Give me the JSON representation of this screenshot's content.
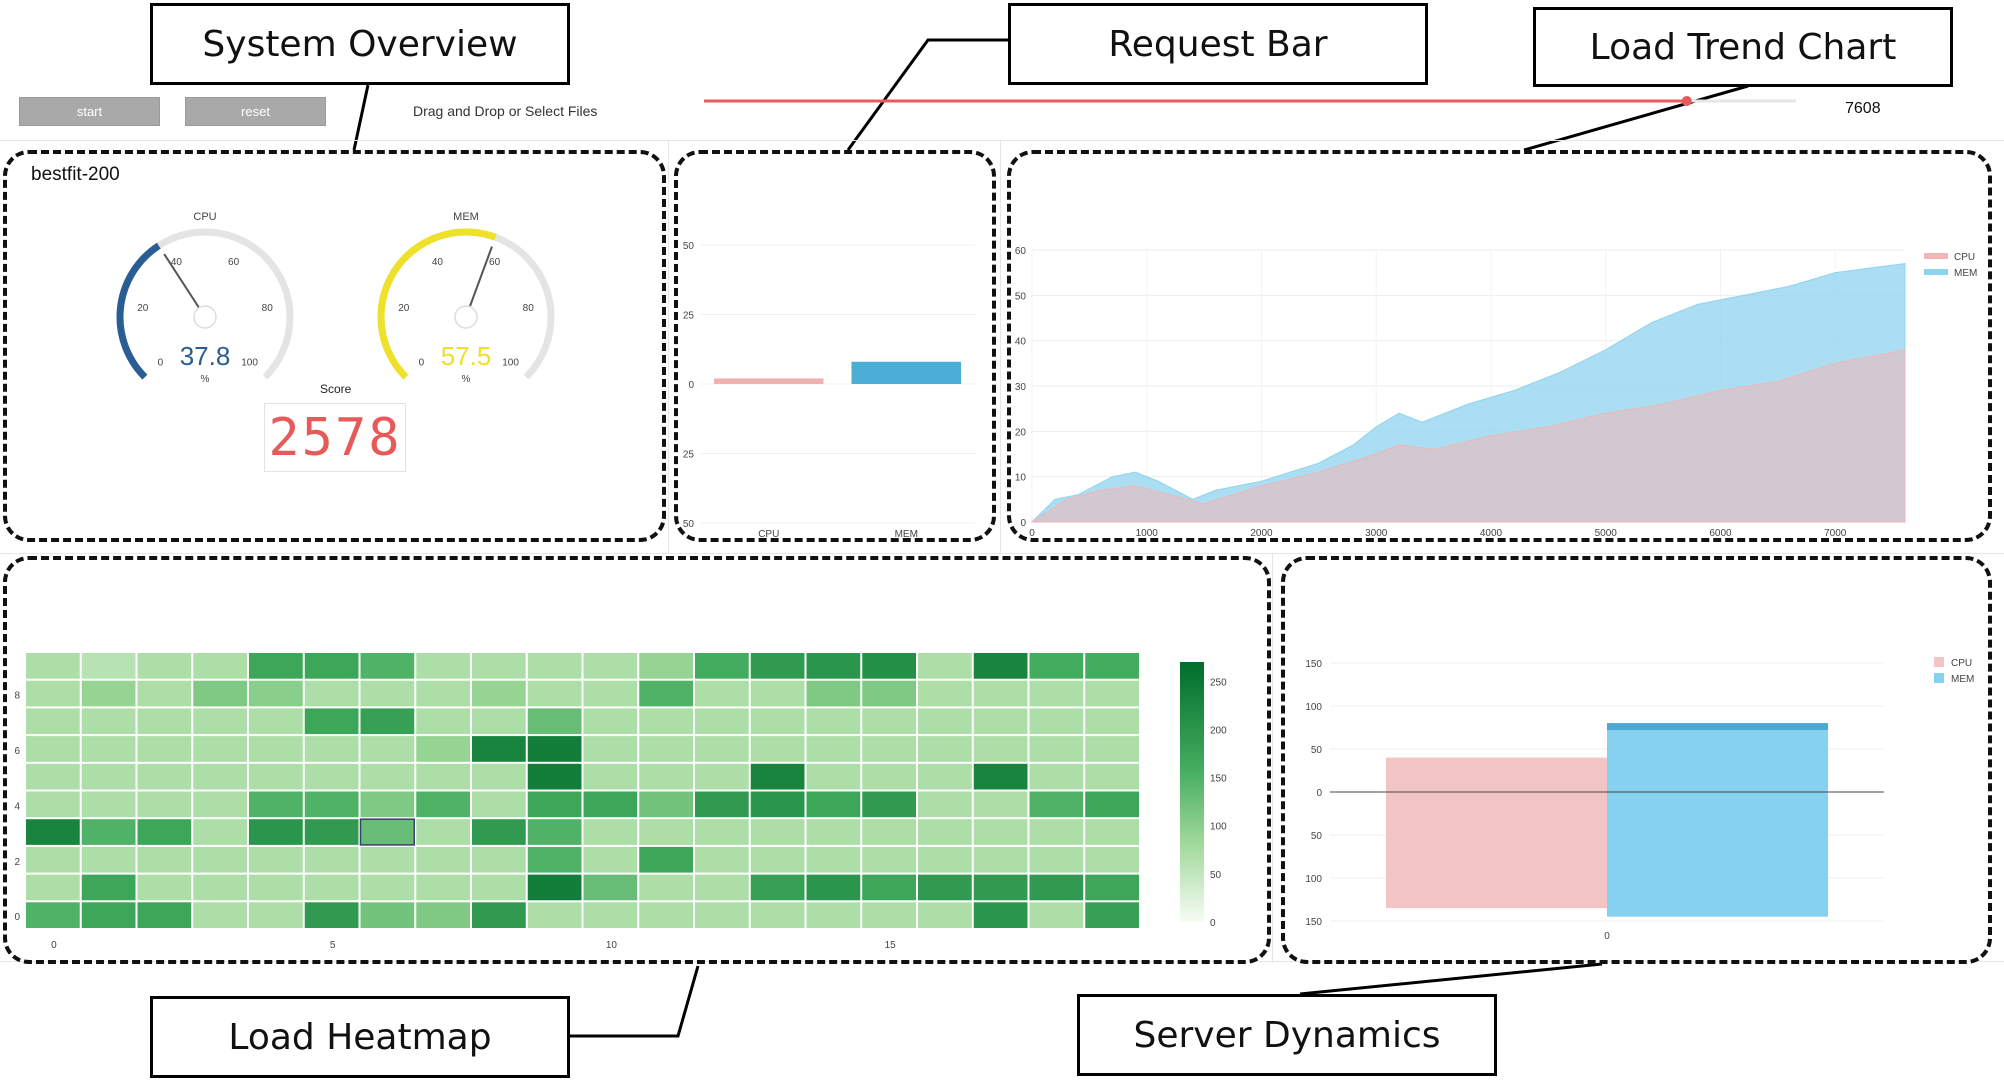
{
  "callouts": {
    "system_overview": "System Overview",
    "request_bar": "Request Bar",
    "load_trend_chart": "Load Trend Chart",
    "load_heatmap": "Load Heatmap",
    "server_dynamics": "Server Dynamics"
  },
  "toolbar": {
    "start_label": "start",
    "reset_label": "reset",
    "file_label": "Drag and Drop or Select Files",
    "slider_value_label": "7608",
    "slider_fraction": 0.9,
    "slider_color": "#e9595b"
  },
  "overview": {
    "title": "bestfit-200",
    "cpu_label": "CPU",
    "mem_label": "MEM",
    "cpu_value": "37.8",
    "mem_value": "57.5",
    "cpu_numeric": 37.8,
    "mem_numeric": 57.5,
    "cpu_color": "#2a5d94",
    "mem_color": "#efe02a",
    "gauge_ticks": [
      "0",
      "20",
      "40",
      "60",
      "80",
      "100"
    ],
    "gauge_unit": "%",
    "score_label": "Score",
    "score_value": "2578",
    "score_color": "#e85a5a"
  },
  "request_bar": {
    "chart_data": {
      "type": "bar",
      "categories": [
        "CPU",
        "MEM"
      ],
      "values": [
        2,
        8
      ],
      "ylim": [
        -50,
        50
      ],
      "yticks": [
        "50",
        "25",
        "0",
        "25",
        "50"
      ],
      "colors": [
        "#f0b2b0",
        "#4aaed6"
      ]
    }
  },
  "trend": {
    "chart_data": {
      "type": "area",
      "xlim": [
        0,
        7608
      ],
      "ylim": [
        0,
        60
      ],
      "xticks": [
        "0",
        "1000",
        "2000",
        "3000",
        "4000",
        "5000",
        "6000",
        "7000"
      ],
      "yticks": [
        "0",
        "10",
        "20",
        "30",
        "40",
        "50",
        "60"
      ],
      "legend": [
        "CPU",
        "MEM"
      ],
      "legend_position": "top-right",
      "series": [
        {
          "name": "CPU",
          "color": "#f1b6b4",
          "x": [
            0,
            300,
            600,
            900,
            1200,
            1500,
            2000,
            2500,
            3000,
            3200,
            3500,
            4000,
            4500,
            5000,
            5500,
            6000,
            6500,
            7000,
            7608
          ],
          "y": [
            0,
            5,
            7,
            8,
            6,
            4,
            8,
            11,
            15,
            17,
            16,
            19,
            21,
            24,
            26,
            29,
            31,
            35,
            38
          ]
        },
        {
          "name": "MEM",
          "color": "#8fd3ef",
          "x": [
            0,
            200,
            400,
            700,
            900,
            1100,
            1400,
            1600,
            2000,
            2500,
            2800,
            3000,
            3200,
            3400,
            3800,
            4200,
            4600,
            5000,
            5400,
            5800,
            6200,
            6600,
            7000,
            7300,
            7608
          ],
          "y": [
            0,
            5,
            6,
            10,
            11,
            9,
            5,
            7,
            9,
            13,
            17,
            21,
            24,
            22,
            26,
            29,
            33,
            38,
            44,
            48,
            50,
            52,
            55,
            56,
            57
          ]
        }
      ]
    }
  },
  "heatmap": {
    "chart_data": {
      "type": "heatmap",
      "x_ticks": [
        "0",
        "5",
        "10",
        "15"
      ],
      "y_ticks": [
        "0",
        "2",
        "4",
        "6",
        "8"
      ],
      "colorbar_ticks": [
        "0",
        "50",
        "100",
        "150",
        "200",
        "250"
      ],
      "zlim": [
        0,
        270
      ],
      "rows": [
        [
          70,
          60,
          70,
          70,
          170,
          170,
          150,
          70,
          70,
          70,
          70,
          90,
          160,
          190,
          200,
          210,
          70,
          230,
          160,
          160
        ],
        [
          70,
          90,
          70,
          110,
          100,
          70,
          70,
          70,
          90,
          70,
          70,
          150,
          70,
          70,
          110,
          110,
          70,
          70,
          70,
          70
        ],
        [
          70,
          70,
          70,
          70,
          70,
          170,
          180,
          70,
          70,
          130,
          70,
          70,
          70,
          70,
          70,
          70,
          70,
          70,
          70,
          70
        ],
        [
          70,
          70,
          70,
          70,
          70,
          70,
          70,
          90,
          230,
          240,
          70,
          70,
          70,
          70,
          70,
          70,
          70,
          70,
          70,
          70
        ],
        [
          70,
          70,
          70,
          70,
          70,
          70,
          70,
          70,
          70,
          240,
          70,
          70,
          70,
          230,
          70,
          70,
          70,
          230,
          70,
          70
        ],
        [
          70,
          70,
          70,
          70,
          150,
          150,
          110,
          150,
          70,
          170,
          170,
          120,
          190,
          200,
          170,
          190,
          70,
          70,
          150,
          170
        ],
        [
          230,
          150,
          170,
          70,
          200,
          190,
          130,
          70,
          190,
          150,
          70,
          70,
          70,
          70,
          70,
          70,
          70,
          70,
          70,
          70
        ],
        [
          70,
          70,
          70,
          70,
          70,
          70,
          70,
          70,
          70,
          150,
          70,
          170,
          70,
          70,
          70,
          70,
          70,
          70,
          70,
          70
        ],
        [
          70,
          170,
          70,
          70,
          70,
          70,
          70,
          70,
          70,
          240,
          130,
          70,
          70,
          180,
          200,
          170,
          190,
          190,
          190,
          170
        ],
        [
          150,
          170,
          170,
          70,
          70,
          190,
          120,
          110,
          190,
          70,
          70,
          70,
          70,
          70,
          70,
          70,
          70,
          200,
          70,
          180
        ]
      ],
      "highlight_cell": {
        "row": 6,
        "col": 6
      }
    }
  },
  "dynamics": {
    "chart_data": {
      "type": "bar",
      "categories": [
        "0"
      ],
      "ylim": [
        -150,
        150
      ],
      "yticks": [
        "150",
        "100",
        "50",
        "0",
        "50",
        "100",
        "150"
      ],
      "legend": [
        "CPU",
        "MEM"
      ],
      "legend_position": "top-right",
      "series": [
        {
          "name": "CPU",
          "color": "#f3c4c4",
          "pos": 40,
          "neg": -135
        },
        {
          "name": "MEM",
          "color": "#86d1f0",
          "pos": 72,
          "neg": -145
        }
      ],
      "top_edge_color": "#4aa9d4"
    }
  }
}
